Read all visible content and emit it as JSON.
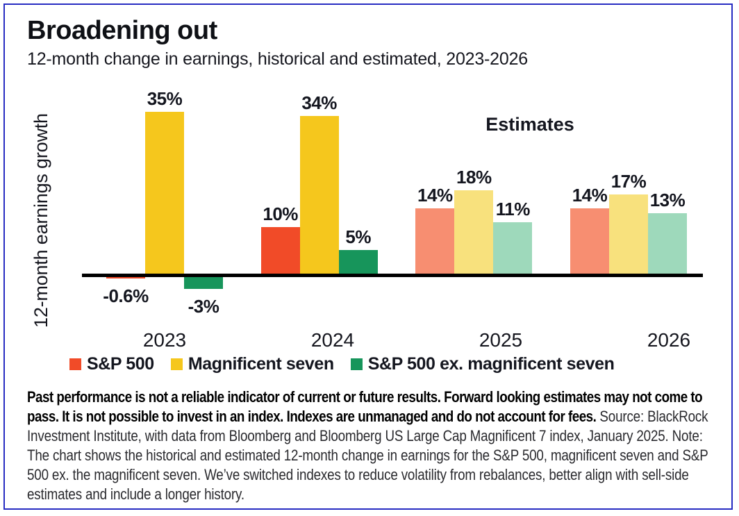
{
  "frame": {
    "border_color": "#262bc2"
  },
  "header": {
    "title": "Broadening out",
    "subtitle": "12-month change in earnings, historical and estimated, 2023-2026"
  },
  "chart_data": {
    "type": "bar",
    "title": "Broadening out",
    "subtitle": "12-month change in earnings, historical and estimated, 2023-2026",
    "ylabel": "12-month earnings growth",
    "annotation": "Estimates",
    "unit": "%",
    "ylim": [
      -5,
      40
    ],
    "grid": false,
    "legend_position": "bottom",
    "categories": [
      "2023",
      "2024",
      "2025",
      "2026"
    ],
    "estimate_categories": [
      "2025",
      "2026"
    ],
    "series": [
      {
        "name": "S&P 500",
        "color": "#f14b28",
        "estimate_color": "#f78e71",
        "values": [
          -0.6,
          10,
          14,
          14
        ],
        "labels": [
          "-0.6%",
          "10%",
          "14%",
          "14%"
        ]
      },
      {
        "name": "Magnificent seven",
        "color": "#f5c71d",
        "estimate_color": "#f8e17d",
        "values": [
          35,
          34,
          18,
          17
        ],
        "labels": [
          "35%",
          "34%",
          "18%",
          "17%"
        ]
      },
      {
        "name": "S&P 500 ex. magnificent seven",
        "color": "#17955b",
        "estimate_color": "#9ed9bb",
        "values": [
          -3,
          5,
          11,
          13
        ],
        "labels": [
          "-3%",
          "5%",
          "11%",
          "13%"
        ]
      }
    ]
  },
  "footnote": {
    "disclaimer": "Past performance is not a reliable indicator of current or future results. Forward looking estimates may not come to pass. It is not possible to invest in an index. Indexes are unmanaged and do not account for fees.",
    "source": " Source: BlackRock Investment Institute, with data from Bloomberg and Bloomberg US Large Cap Magnificent 7 index, January 2025. Note: The chart shows the historical and estimated 12-month change in earnings for the S&P 500, magnificent seven and S&P 500 ex. the magnificent seven. We’ve switched indexes to reduce volatility from rebalances, better align with sell-side estimates and include a longer history."
  }
}
